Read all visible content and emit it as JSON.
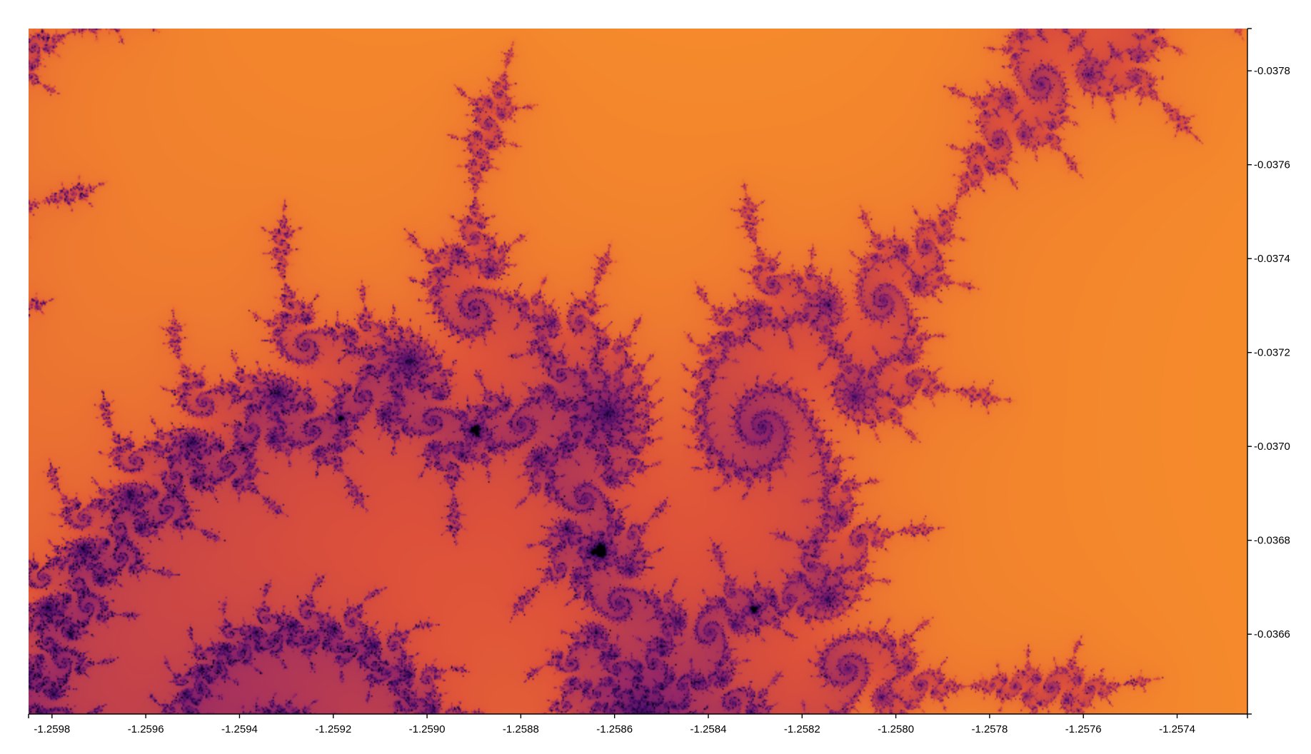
{
  "chart_data": {
    "type": "heatmap",
    "title": "",
    "xlabel": "",
    "ylabel": "",
    "xlim": [
      -1.25985,
      -1.25725
    ],
    "ylim": [
      -0.03643,
      -0.03789
    ],
    "x_ticks": [
      "-1.2598",
      "-1.2596",
      "-1.2594",
      "-1.2592",
      "-1.2590",
      "-1.2588",
      "-1.2586",
      "-1.2584",
      "-1.2582",
      "-1.2580",
      "-1.2578",
      "-1.2576",
      "-1.2574"
    ],
    "y_ticks": [
      "-0.0366",
      "-0.0368",
      "-0.0370",
      "-0.0372",
      "-0.0374",
      "-0.0376",
      "-0.0378"
    ],
    "x_axis_position": "bottom",
    "y_axis_position": "right",
    "grid": false,
    "colorscale": "inferno",
    "colors": {
      "inside": "#000004",
      "dark": "#420a68",
      "mid": "#932667",
      "orange": "#f57d15",
      "light": "#fcffa4"
    },
    "description_of_content": "Mandelbrot set escape-time fractal"
  }
}
